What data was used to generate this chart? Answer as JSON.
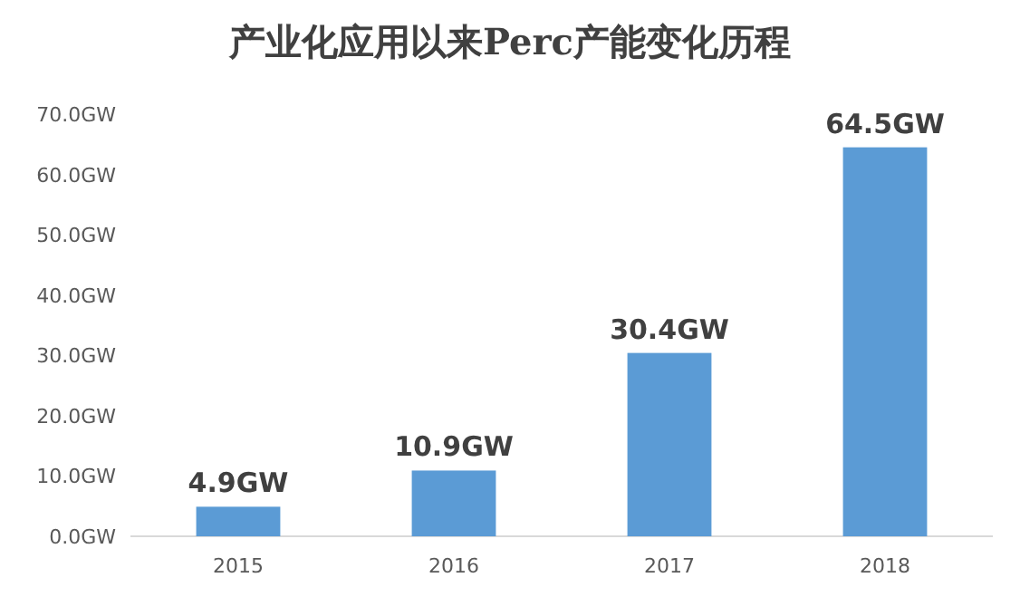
{
  "chart_data": {
    "type": "bar",
    "title": "产业化应用以来Perc产能变化历程",
    "categories": [
      "2015",
      "2016",
      "2017",
      "2018"
    ],
    "values": [
      4.9,
      10.9,
      30.4,
      64.5
    ],
    "value_labels": [
      "4.9GW",
      "10.9GW",
      "30.4GW",
      "64.5GW"
    ],
    "color": "#5b9bd5",
    "ylim": [
      0,
      70
    ],
    "yticks": [
      {
        "value": 0,
        "label": "0.0GW"
      },
      {
        "value": 10,
        "label": "10.0GW"
      },
      {
        "value": 20,
        "label": "20.0GW"
      },
      {
        "value": 30,
        "label": "30.0GW"
      },
      {
        "value": 40,
        "label": "40.0GW"
      },
      {
        "value": 50,
        "label": "50.0GW"
      },
      {
        "value": 60,
        "label": "60.0GW"
      },
      {
        "value": 70,
        "label": "70.0GW"
      }
    ]
  }
}
